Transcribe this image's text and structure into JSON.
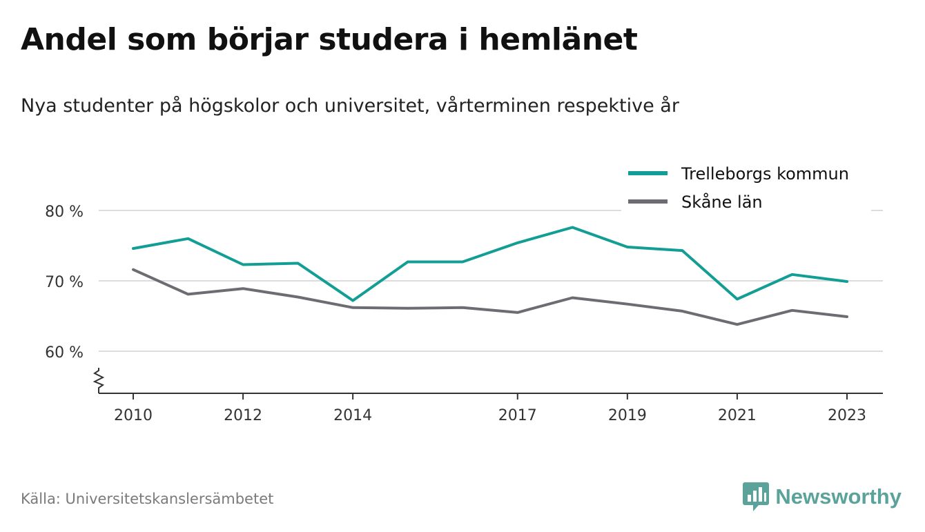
{
  "header": {
    "title": "Andel som börjar studera i hemlänet",
    "subtitle": "Nya studenter på högskolor och universitet, vårterminen respektive år"
  },
  "footer": {
    "source": "Källa: Universitetskanslersämbetet",
    "brand": "Newsworthy",
    "brand_icon": "bar-chart-speech-bubble-icon"
  },
  "colors": {
    "trelleborg": "#129e94",
    "skane": "#6d6c72",
    "grid": "#dcdcdc",
    "axis": "#333333",
    "brand": "#5ba39a"
  },
  "chart_data": {
    "type": "line",
    "title": "Andel som börjar studera i hemlänet",
    "subtitle": "Nya studenter på högskolor och universitet, vårterminen respektive år",
    "xlabel": "",
    "ylabel": "",
    "x": [
      2010,
      2011,
      2012,
      2013,
      2014,
      2015,
      2016,
      2017,
      2018,
      2019,
      2020,
      2021,
      2022,
      2023
    ],
    "x_ticks": [
      2010,
      2012,
      2014,
      2017,
      2019,
      2021,
      2023
    ],
    "y_ticks": [
      60,
      70,
      80
    ],
    "y_tick_labels": [
      "60 %",
      "70 %",
      "80 %"
    ],
    "ylim": [
      54.5,
      82
    ],
    "y_axis_break": true,
    "grid": "horizontal",
    "legend_position": "top-right",
    "series": [
      {
        "name": "Trelleborgs kommun",
        "color": "#129e94",
        "values": [
          74.6,
          76.0,
          72.3,
          72.5,
          67.2,
          72.7,
          72.7,
          75.4,
          77.6,
          74.8,
          74.3,
          67.4,
          70.9,
          69.9
        ]
      },
      {
        "name": "Skåne län",
        "color": "#6d6c72",
        "values": [
          71.6,
          68.1,
          68.9,
          67.7,
          66.2,
          66.1,
          66.2,
          65.5,
          67.6,
          66.7,
          65.7,
          63.8,
          65.8,
          64.9
        ]
      }
    ]
  }
}
